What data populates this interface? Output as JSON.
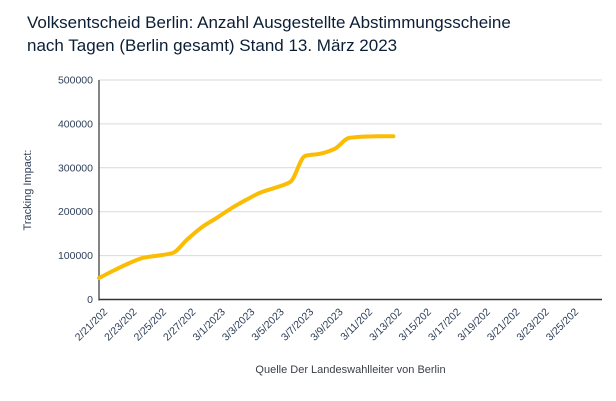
{
  "header": {
    "title_lines": [
      "Volksentscheid Berlin: Anzahl Ausgestellte Abstimmungsscheine",
      "nach Tagen (Berlin gesamt) Stand 13. März 2023"
    ]
  },
  "footer": {
    "source": "Quelle Der Landeswahlleiter von Berlin"
  },
  "colors": {
    "accent_line": "#FBBC04",
    "title_text": "#0b1e36",
    "axis_text": "#30405a",
    "grid": "#d9d9d9",
    "axis_line": "#333333",
    "source_text": "#3a3f46",
    "background": "#ffffff"
  },
  "chart_data": {
    "type": "line",
    "title": "Volksentscheid Berlin: Anzahl Ausgestellte Abstimmungsscheine nach Tagen (Berlin gesamt) Stand 13. März 2023",
    "xlabel": "",
    "ylabel": "Tracking Impact:",
    "ylim": [
      0,
      500000
    ],
    "grid": true,
    "legend_position": "none",
    "ytick_values": [
      0,
      100000,
      200000,
      300000,
      400000,
      500000
    ],
    "ytick_labels": [
      "0",
      "100000",
      "200000",
      "300000",
      "400000",
      "500000"
    ],
    "xtick_labels": [
      "2/21/202",
      "2/23/202",
      "2/25/202",
      "2/27/202",
      "3/1/2023",
      "3/3/2023",
      "3/5/2023",
      "3/7/2023",
      "3/9/2023",
      "3/11/202",
      "3/13/202",
      "3/15/202",
      "3/17/202",
      "3/19/202",
      "3/21/202",
      "3/23/202",
      "3/25/202"
    ],
    "series": [
      {
        "name": "Tracking Impact",
        "color": "#FBBC04",
        "x": [
          "2/21/2023",
          "2/22/2023",
          "2/23/2023",
          "2/24/2023",
          "2/25/2023",
          "2/26/2023",
          "2/27/2023",
          "2/28/2023",
          "3/1/2023",
          "3/2/2023",
          "3/3/2023",
          "3/4/2023",
          "3/5/2023",
          "3/6/2023",
          "3/7/2023",
          "3/8/2023",
          "3/9/2023",
          "3/10/2023",
          "3/11/2023",
          "3/12/2023",
          "3/13/2023"
        ],
        "values": [
          49000,
          66000,
          82000,
          95000,
          100000,
          106000,
          137000,
          165000,
          186000,
          208000,
          227000,
          244000,
          255000,
          268000,
          327000,
          332000,
          343000,
          368000,
          371000,
          372000,
          372000
        ]
      }
    ]
  }
}
